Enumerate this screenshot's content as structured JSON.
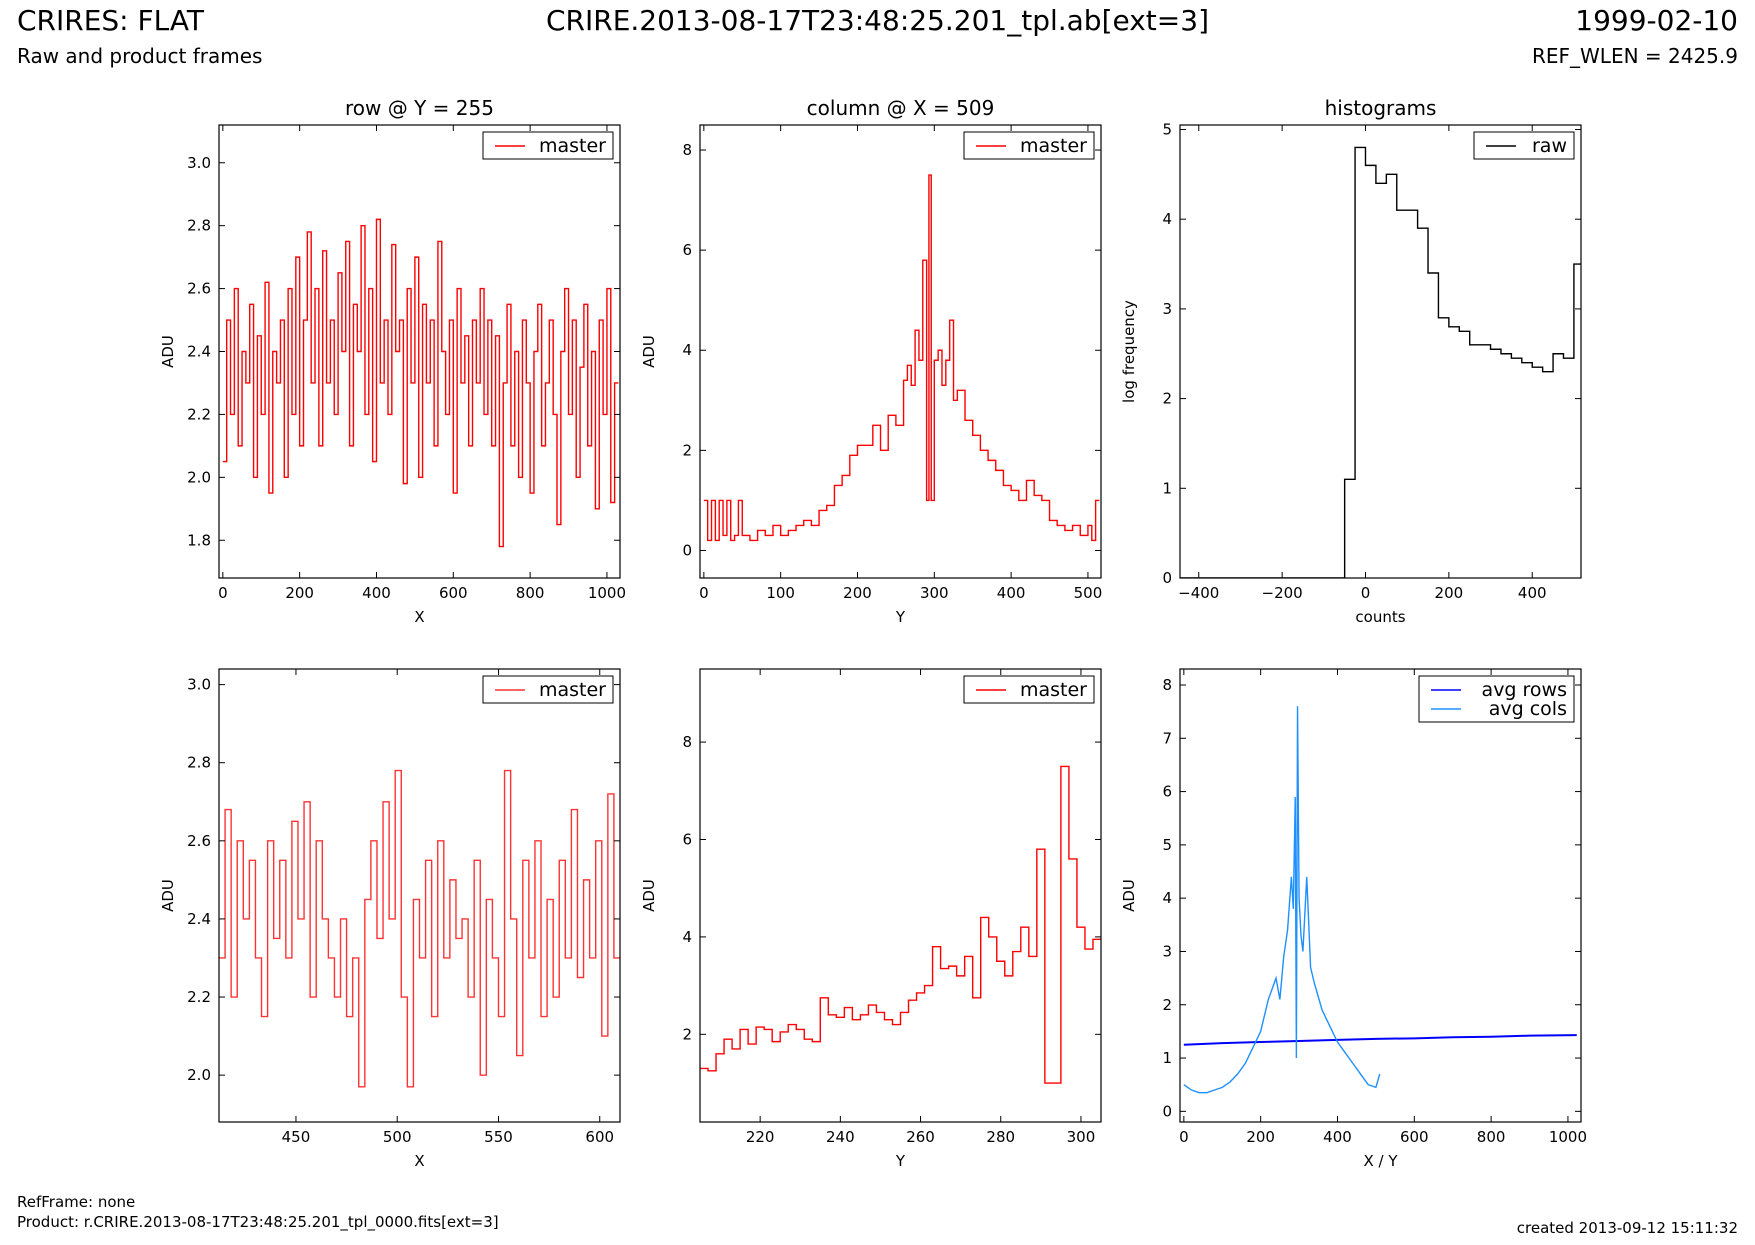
{
  "header": {
    "title": "CRIRES: FLAT",
    "subtitle": "Raw and product frames",
    "file": "CRIRE.2013-08-17T23:48:25.201_tpl.ab[ext=3]",
    "date": "1999-02-10",
    "ref_wlen": "REF_WLEN = 2425.9"
  },
  "footer": {
    "ref_frame": "RefFrame: none",
    "product": "Product: r.CRIRE.2013-08-17T23:48:25.201_tpl_0000.fits[ext=3]",
    "created": "created 2013-09-12 15:11:32"
  },
  "chart_data": [
    {
      "id": "row",
      "type": "line",
      "title": "row @ Y = 255",
      "xlabel": "X",
      "ylabel": "ADU",
      "xlim": [
        -10,
        1034
      ],
      "ylim": [
        1.68,
        3.12
      ],
      "xticks": [
        0,
        200,
        400,
        600,
        800,
        1000
      ],
      "yticks": [
        1.8,
        2.0,
        2.2,
        2.4,
        2.6,
        2.8,
        3.0
      ],
      "ytick_labels": [
        "1.8",
        "2.0",
        "2.2",
        "2.4",
        "2.6",
        "2.8",
        "3.0"
      ],
      "legend": "top-right",
      "series": [
        {
          "name": "master",
          "color": "#ff0000",
          "step": true,
          "x": [
            0,
            10,
            20,
            30,
            40,
            50,
            60,
            70,
            80,
            90,
            100,
            110,
            120,
            130,
            140,
            150,
            160,
            170,
            180,
            190,
            200,
            210,
            220,
            230,
            240,
            250,
            260,
            270,
            280,
            290,
            300,
            310,
            320,
            330,
            340,
            350,
            360,
            370,
            380,
            390,
            400,
            410,
            420,
            430,
            440,
            450,
            460,
            470,
            480,
            490,
            500,
            510,
            520,
            530,
            540,
            550,
            560,
            570,
            580,
            590,
            600,
            610,
            620,
            630,
            640,
            650,
            660,
            670,
            680,
            690,
            700,
            710,
            720,
            730,
            740,
            750,
            760,
            770,
            780,
            790,
            800,
            810,
            820,
            830,
            840,
            850,
            860,
            870,
            880,
            890,
            900,
            910,
            920,
            930,
            940,
            950,
            960,
            970,
            980,
            990,
            1000,
            1010,
            1020
          ],
          "y": [
            2.05,
            2.5,
            2.2,
            2.6,
            2.1,
            2.4,
            2.3,
            2.55,
            2.0,
            2.45,
            2.2,
            2.62,
            1.95,
            2.4,
            2.3,
            2.5,
            2.0,
            2.6,
            2.2,
            2.7,
            2.1,
            2.5,
            2.78,
            2.3,
            2.6,
            2.1,
            2.72,
            2.3,
            2.5,
            2.2,
            2.65,
            2.4,
            2.75,
            2.1,
            2.55,
            2.4,
            2.8,
            2.2,
            2.6,
            2.05,
            2.82,
            2.3,
            2.5,
            2.2,
            2.74,
            2.4,
            2.5,
            1.98,
            2.6,
            2.3,
            2.7,
            2.0,
            2.55,
            2.3,
            2.5,
            2.1,
            2.75,
            2.4,
            2.2,
            2.5,
            1.95,
            2.6,
            2.3,
            2.45,
            2.1,
            2.5,
            2.3,
            2.6,
            2.2,
            2.5,
            2.1,
            2.45,
            1.78,
            2.3,
            2.55,
            2.1,
            2.4,
            2.0,
            2.5,
            2.3,
            1.95,
            2.4,
            2.55,
            2.1,
            2.3,
            2.5,
            2.2,
            1.85,
            2.4,
            2.6,
            2.2,
            2.5,
            2.0,
            2.35,
            2.55,
            2.1,
            2.4,
            1.9,
            2.5,
            2.2,
            2.6,
            1.92,
            2.3
          ]
        }
      ]
    },
    {
      "id": "column",
      "type": "line",
      "title": "column @ X = 509",
      "xlabel": "Y",
      "ylabel": "ADU",
      "xlim": [
        -5,
        517
      ],
      "ylim": [
        -0.55,
        8.5
      ],
      "xticks": [
        0,
        100,
        200,
        300,
        400,
        500
      ],
      "yticks": [
        0,
        2,
        4,
        6,
        8
      ],
      "legend": "top-right",
      "series": [
        {
          "name": "master",
          "color": "#ff0000",
          "step": true,
          "x": [
            0,
            5,
            10,
            15,
            20,
            25,
            30,
            35,
            40,
            45,
            50,
            60,
            70,
            80,
            90,
            100,
            110,
            120,
            130,
            140,
            150,
            160,
            170,
            180,
            190,
            200,
            210,
            220,
            230,
            240,
            250,
            260,
            265,
            270,
            275,
            280,
            285,
            290,
            293,
            296,
            300,
            305,
            310,
            315,
            320,
            325,
            330,
            340,
            350,
            360,
            370,
            380,
            390,
            400,
            410,
            420,
            430,
            440,
            450,
            460,
            470,
            480,
            490,
            500,
            505,
            510
          ],
          "y": [
            1.0,
            0.2,
            1.0,
            0.2,
            1.0,
            0.3,
            1.0,
            0.2,
            0.3,
            1.0,
            0.3,
            0.2,
            0.4,
            0.3,
            0.5,
            0.3,
            0.4,
            0.5,
            0.6,
            0.5,
            0.8,
            0.9,
            1.3,
            1.5,
            1.9,
            2.1,
            2.1,
            2.5,
            2.0,
            2.7,
            2.5,
            3.4,
            3.7,
            3.3,
            4.4,
            3.8,
            5.8,
            1.0,
            7.5,
            1.0,
            3.8,
            4.0,
            3.3,
            3.8,
            4.6,
            3.0,
            3.2,
            2.6,
            2.3,
            2.0,
            1.8,
            1.6,
            1.3,
            1.2,
            1.0,
            1.4,
            1.1,
            1.0,
            0.6,
            0.5,
            0.4,
            0.5,
            0.3,
            0.5,
            0.2,
            1.0
          ]
        }
      ]
    },
    {
      "id": "histogram",
      "type": "line",
      "title": "histograms",
      "xlabel": "counts",
      "ylabel": "log frequency",
      "xlim": [
        -445,
        517
      ],
      "ylim": [
        0,
        5.05
      ],
      "xticks": [
        -400,
        -200,
        0,
        200,
        400
      ],
      "xtick_labels": [
        "−400",
        "−200",
        "0",
        "200",
        "400"
      ],
      "yticks": [
        0,
        1,
        2,
        3,
        4,
        5
      ],
      "legend": "top-right",
      "series": [
        {
          "name": "raw",
          "color": "#000000",
          "step": true,
          "x": [
            -445,
            -50,
            -25,
            0,
            25,
            50,
            75,
            100,
            125,
            150,
            175,
            200,
            225,
            250,
            275,
            300,
            325,
            350,
            375,
            400,
            425,
            450,
            475,
            500,
            517
          ],
          "y": [
            0,
            1.1,
            4.8,
            4.6,
            4.4,
            4.5,
            4.1,
            4.1,
            3.9,
            3.4,
            2.9,
            2.8,
            2.75,
            2.6,
            2.6,
            2.55,
            2.5,
            2.45,
            2.4,
            2.35,
            2.3,
            2.5,
            2.45,
            3.5,
            3.5
          ]
        }
      ]
    },
    {
      "id": "row-zoom",
      "type": "line",
      "xlabel": "X",
      "ylabel": "ADU",
      "xlim": [
        412,
        610
      ],
      "ylim": [
        1.88,
        3.04
      ],
      "xticks": [
        450,
        500,
        550,
        600
      ],
      "yticks": [
        2.0,
        2.2,
        2.4,
        2.6,
        2.8,
        3.0
      ],
      "ytick_labels": [
        "2.0",
        "2.2",
        "2.4",
        "2.6",
        "2.8",
        "3.0"
      ],
      "legend": "top-right",
      "series": [
        {
          "name": "master",
          "color": "#ff3333",
          "step": true,
          "x": [
            412,
            415,
            418,
            421,
            424,
            427,
            430,
            433,
            436,
            439,
            442,
            445,
            448,
            451,
            454,
            457,
            460,
            463,
            466,
            469,
            472,
            475,
            478,
            481,
            484,
            487,
            490,
            493,
            496,
            499,
            502,
            505,
            508,
            511,
            514,
            517,
            520,
            523,
            526,
            529,
            532,
            535,
            538,
            541,
            544,
            547,
            550,
            553,
            556,
            559,
            562,
            565,
            568,
            571,
            574,
            577,
            580,
            583,
            586,
            589,
            592,
            595,
            598,
            601,
            604,
            607
          ],
          "y": [
            2.3,
            2.68,
            2.2,
            2.6,
            2.4,
            2.55,
            2.3,
            2.15,
            2.6,
            2.35,
            2.55,
            2.3,
            2.65,
            2.4,
            2.7,
            2.2,
            2.6,
            2.4,
            2.3,
            2.2,
            2.4,
            2.15,
            2.3,
            1.97,
            2.45,
            2.6,
            2.35,
            2.7,
            2.4,
            2.78,
            2.2,
            1.97,
            2.45,
            2.3,
            2.55,
            2.15,
            2.6,
            2.3,
            2.5,
            2.35,
            2.4,
            2.2,
            2.55,
            2.0,
            2.45,
            2.3,
            2.15,
            2.78,
            2.4,
            2.05,
            2.55,
            2.3,
            2.6,
            2.15,
            2.45,
            2.2,
            2.55,
            2.3,
            2.68,
            2.25,
            2.5,
            2.3,
            2.6,
            2.1,
            2.72,
            2.3
          ]
        }
      ]
    },
    {
      "id": "column-zoom",
      "type": "line",
      "xlabel": "Y",
      "ylabel": "ADU",
      "xlim": [
        205,
        305
      ],
      "ylim": [
        0.2,
        9.5
      ],
      "xticks": [
        220,
        240,
        260,
        280,
        300
      ],
      "yticks": [
        2,
        4,
        6,
        8
      ],
      "legend": "top-right",
      "series": [
        {
          "name": "master",
          "color": "#ff0000",
          "step": true,
          "x": [
            205,
            207,
            209,
            211,
            213,
            215,
            217,
            219,
            221,
            223,
            225,
            227,
            229,
            231,
            233,
            235,
            237,
            239,
            241,
            243,
            245,
            247,
            249,
            251,
            253,
            255,
            257,
            259,
            261,
            263,
            265,
            267,
            269,
            271,
            273,
            275,
            277,
            279,
            281,
            283,
            285,
            287,
            289,
            291,
            293,
            295,
            297,
            299,
            301,
            303
          ],
          "y": [
            1.3,
            1.25,
            1.6,
            1.9,
            1.7,
            2.1,
            1.8,
            2.15,
            2.1,
            1.85,
            2.05,
            2.2,
            2.1,
            1.9,
            1.85,
            2.75,
            2.4,
            2.35,
            2.55,
            2.3,
            2.4,
            2.6,
            2.45,
            2.3,
            2.2,
            2.45,
            2.7,
            2.85,
            3.0,
            3.8,
            3.35,
            3.4,
            3.2,
            3.6,
            2.75,
            4.4,
            4.0,
            3.5,
            3.2,
            3.7,
            4.2,
            3.6,
            5.8,
            1.0,
            1.0,
            7.5,
            5.6,
            4.2,
            3.75,
            3.95
          ]
        }
      ]
    },
    {
      "id": "averages",
      "type": "line",
      "xlabel": "X / Y",
      "ylabel": "ADU",
      "xlim": [
        -10,
        1034
      ],
      "ylim": [
        -0.2,
        8.3
      ],
      "xticks": [
        0,
        200,
        400,
        600,
        800,
        1000
      ],
      "yticks": [
        0,
        1,
        2,
        3,
        4,
        5,
        6,
        7,
        8
      ],
      "legend": "top-right",
      "series": [
        {
          "name": "avg rows",
          "color": "#0000ff",
          "step": false,
          "x": [
            0,
            100,
            200,
            300,
            400,
            500,
            600,
            700,
            800,
            900,
            1023
          ],
          "y": [
            1.25,
            1.28,
            1.3,
            1.32,
            1.34,
            1.36,
            1.37,
            1.39,
            1.4,
            1.42,
            1.43
          ]
        },
        {
          "name": "avg cols",
          "color": "#1e90ff",
          "step": false,
          "x": [
            0,
            20,
            40,
            60,
            80,
            100,
            120,
            140,
            160,
            180,
            200,
            220,
            240,
            250,
            260,
            270,
            280,
            285,
            290,
            293,
            296,
            300,
            305,
            310,
            320,
            330,
            340,
            360,
            380,
            400,
            420,
            440,
            460,
            480,
            500,
            510
          ],
          "y": [
            0.5,
            0.4,
            0.35,
            0.35,
            0.4,
            0.45,
            0.55,
            0.7,
            0.9,
            1.2,
            1.5,
            2.1,
            2.5,
            2.1,
            2.9,
            3.4,
            4.4,
            3.8,
            5.9,
            1.0,
            7.6,
            4.0,
            3.3,
            3.0,
            4.4,
            2.7,
            2.4,
            1.9,
            1.6,
            1.3,
            1.1,
            0.9,
            0.7,
            0.5,
            0.45,
            0.7
          ]
        }
      ]
    }
  ]
}
